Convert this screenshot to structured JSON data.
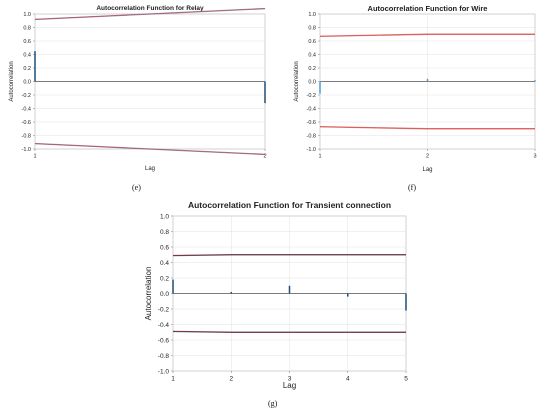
{
  "chart_data": [
    {
      "id": "e",
      "type": "bar",
      "title": "Autocorrelation Function for Relay",
      "xlabel": "Lag",
      "ylabel": "Autocorrelation",
      "x": [
        1,
        2
      ],
      "values": [
        0.45,
        -0.32
      ],
      "ylim": [
        -1.0,
        1.0
      ],
      "yticks": [
        "1.0",
        "0.8",
        "0.6",
        "0.4",
        "0.2",
        "0.0",
        "-0.2",
        "-0.4",
        "-0.6",
        "-0.8",
        "-1.0"
      ],
      "xticks": [
        "1",
        "2"
      ],
      "upper_limit": [
        0.92,
        1.08
      ],
      "lower_limit": [
        -0.92,
        -1.08
      ],
      "grid": true,
      "colors": {
        "bar": "#1f4e79",
        "limit": "#c0504d",
        "limit_shade": "#6a6ab0"
      }
    },
    {
      "id": "f",
      "type": "bar",
      "title": "Autocorrelation Function for Wire",
      "xlabel": "Lag",
      "ylabel": "Autocorrelation",
      "x": [
        1,
        2,
        3
      ],
      "values": [
        -0.18,
        0.04,
        0.02
      ],
      "ylim": [
        -1.0,
        1.0
      ],
      "yticks": [
        "1.0",
        "0.8",
        "0.6",
        "0.4",
        "0.2",
        "0.0",
        "-0.2",
        "-0.4",
        "-0.6",
        "-0.8",
        "-1.0"
      ],
      "xticks": [
        "1",
        "2",
        "3"
      ],
      "upper_limit": [
        0.67,
        0.7,
        0.7
      ],
      "lower_limit": [
        -0.67,
        -0.7,
        -0.7
      ],
      "grid": true,
      "colors": {
        "bar": "#4f9bd6",
        "limit": "#d9534f",
        "limit_shade": "#d9534f"
      }
    },
    {
      "id": "g",
      "type": "bar",
      "title": "Autocorrelation Function for Transient connection",
      "xlabel": "Lag",
      "ylabel": "Autocorrelation",
      "x": [
        1,
        2,
        3,
        4,
        5
      ],
      "values": [
        0.18,
        0.02,
        0.1,
        -0.04,
        -0.22
      ],
      "ylim": [
        -1.0,
        1.0
      ],
      "yticks": [
        "1.0",
        "0.8",
        "0.6",
        "0.4",
        "0.2",
        "0.0",
        "-0.2",
        "-0.4",
        "-0.6",
        "-0.8",
        "-1.0"
      ],
      "xticks": [
        "1",
        "2",
        "3",
        "4",
        "5"
      ],
      "upper_limit": [
        0.49,
        0.5,
        0.5,
        0.5,
        0.5
      ],
      "lower_limit": [
        -0.49,
        -0.5,
        -0.5,
        -0.5,
        -0.5
      ],
      "grid": true,
      "colors": {
        "bar": "#1f4e79",
        "limit": "#8b1a1a",
        "limit_shade": "#2f4f6f"
      }
    }
  ],
  "captions": {
    "e": "(e)",
    "f": "(f)",
    "g": "(g)"
  }
}
